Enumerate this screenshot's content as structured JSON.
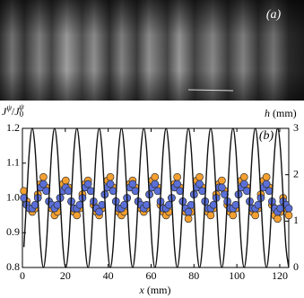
{
  "chart_data": {
    "type": "scatter",
    "image_label": "(a)",
    "panel_label": "(b)",
    "ylabel": [
      "J",
      "ψ",
      "/",
      "J",
      "0",
      "ψ"
    ],
    "y2label": [
      "h",
      " (mm)"
    ],
    "xlabel": [
      "x",
      " (mm)"
    ],
    "xlim": [
      0,
      124.2
    ],
    "ylim": [
      0.8,
      1.2
    ],
    "y2lim": [
      0,
      3
    ],
    "xticks": [
      0,
      20,
      40,
      60,
      80,
      100,
      120
    ],
    "yticks": [
      0.8,
      0.9,
      {
        "value": 1,
        "label": "1.0"
      },
      1.1,
      1.2
    ],
    "y2ticks": [
      0,
      1,
      2,
      3
    ],
    "x": [
      0.7,
      2,
      3.3,
      4.6,
      5.9,
      7.2,
      8.5,
      9.8,
      11.1,
      12.4,
      13.7,
      15,
      16.3,
      17.6,
      18.9,
      20.2,
      21.5,
      22.8,
      24.1,
      25.4,
      26.7,
      28,
      29.3,
      30.6,
      31.9,
      33.2,
      34.5,
      35.8,
      37.1,
      38.4,
      39.7,
      41,
      42.3,
      43.6,
      44.9,
      46.2,
      47.5,
      48.8,
      50.1,
      51.4,
      52.7,
      54,
      55.3,
      56.6,
      57.9,
      59.2,
      60.5,
      61.8,
      63.1,
      64.4,
      65.7,
      67,
      68.3,
      69.6,
      70.9,
      72.2,
      73.5,
      74.8,
      76.1,
      77.4,
      78.7,
      80,
      81.3,
      82.6,
      83.9,
      85.2,
      86.5,
      87.8,
      89.1,
      90.4,
      91.7,
      93,
      94.3,
      95.6,
      96.9,
      98.2,
      99.5,
      100.8,
      102.1,
      103.4,
      104.7,
      106,
      107.3,
      108.6,
      109.9,
      111.2,
      112.5,
      113.8,
      115.1,
      116.4,
      117.7,
      119,
      120.3,
      121.6,
      122.9,
      124.2
    ],
    "series": [
      {
        "type": "line",
        "axis": "y2",
        "color": "#111111",
        "values": [
          0.44,
          1.5,
          2.56,
          3,
          2.56,
          1.5,
          0.44,
          0,
          0.44,
          1.5,
          2.56,
          3,
          2.56,
          1.5,
          0.44,
          0,
          0.44,
          1.5,
          2.56,
          3,
          2.56,
          1.5,
          0.44,
          0,
          0.44,
          1.5,
          2.56,
          3,
          2.56,
          1.5,
          0.44,
          0,
          0.44,
          1.5,
          2.56,
          3,
          2.56,
          1.5,
          0.44,
          0,
          0.44,
          1.5,
          2.56,
          3,
          2.56,
          1.5,
          0.44,
          0,
          0.44,
          1.5,
          2.56,
          3,
          2.56,
          1.5,
          0.44,
          0,
          0.44,
          1.5,
          2.56,
          3,
          2.56,
          1.5,
          0.44,
          0,
          0.44,
          1.5,
          2.56,
          3,
          2.56,
          1.5,
          0.44,
          0,
          0.44,
          1.5,
          2.56,
          3,
          2.56,
          1.5,
          0.44,
          0,
          0.44,
          1.5,
          2.56,
          3,
          2.56,
          1.5,
          0.44,
          0,
          0.44,
          1.5,
          2.56,
          3,
          2.56,
          1.5,
          0.44,
          0
        ]
      },
      {
        "type": "scatter",
        "color": "#f5a030",
        "values": [
          1.02,
          0.99,
          0.97,
          0.96,
          0.97,
          1.01,
          1.04,
          1.06,
          1.03,
          0.99,
          0.97,
          0.95,
          0.96,
          1.0,
          1.04,
          1.05,
          1.03,
          0.99,
          0.96,
          0.95,
          0.97,
          1.01,
          1.04,
          1.05,
          1.02,
          0.98,
          0.96,
          0.95,
          0.97,
          1.01,
          1.05,
          1.06,
          1.03,
          0.99,
          0.96,
          0.95,
          0.96,
          1.0,
          1.04,
          1.05,
          1.03,
          0.99,
          0.97,
          0.96,
          0.97,
          1.01,
          1.05,
          1.06,
          1.03,
          0.98,
          0.96,
          0.95,
          0.96,
          1.0,
          1.04,
          1.06,
          1.03,
          0.99,
          0.96,
          0.94,
          0.96,
          1.01,
          1.05,
          1.06,
          1.03,
          0.99,
          0.96,
          0.95,
          0.97,
          1.01,
          1.04,
          1.05,
          1.02,
          0.98,
          0.96,
          0.95,
          0.97,
          1.01,
          1.05,
          1.06,
          1.03,
          0.99,
          0.96,
          0.95,
          0.97,
          1.01,
          1.05,
          1.06,
          1.03,
          0.98,
          0.95,
          0.94,
          0.96,
          1.0,
          0.97,
          0.95
        ]
      },
      {
        "type": "scatter",
        "color": "#5a6fd8",
        "values": [
          1.0,
          0.98,
          0.97,
          0.97,
          0.98,
          1.0,
          1.03,
          1.04,
          1.02,
          0.99,
          0.98,
          0.97,
          0.98,
          1.0,
          1.02,
          1.03,
          1.02,
          0.99,
          0.97,
          0.97,
          0.98,
          1.0,
          1.03,
          1.04,
          1.02,
          0.99,
          0.97,
          0.96,
          0.98,
          1.01,
          1.03,
          1.04,
          1.02,
          0.99,
          0.97,
          0.97,
          0.98,
          1.0,
          1.03,
          1.04,
          1.02,
          0.99,
          0.98,
          0.97,
          0.98,
          1.01,
          1.03,
          1.04,
          1.02,
          0.99,
          0.97,
          0.97,
          0.98,
          1.0,
          1.03,
          1.04,
          1.02,
          0.99,
          0.97,
          0.96,
          0.98,
          1.01,
          1.03,
          1.04,
          1.02,
          0.99,
          0.97,
          0.97,
          0.98,
          1.0,
          1.03,
          1.03,
          1.01,
          0.99,
          0.97,
          0.97,
          0.98,
          1.01,
          1.03,
          1.04,
          1.02,
          0.99,
          0.97,
          0.97,
          0.98,
          1.0,
          1.03,
          1.04,
          1.02,
          0.99,
          0.97,
          0.96,
          0.97,
          0.99,
          0.98,
          0.97
        ]
      }
    ]
  }
}
